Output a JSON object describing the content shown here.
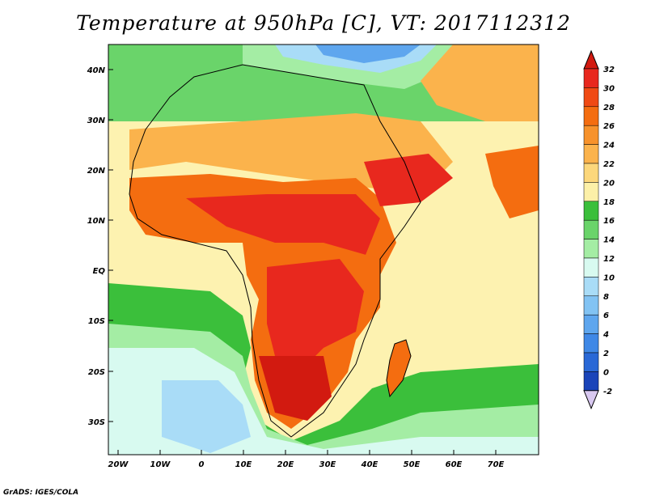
{
  "title": "Temperature at 950hPa [C], VT: 2017112312",
  "footer": "GrADS: IGES/COLA",
  "map": {
    "lat_labels": [
      "40N",
      "30N",
      "20N",
      "10N",
      "EQ",
      "10S",
      "20S",
      "30S"
    ],
    "lon_labels": [
      "20W",
      "10W",
      "0",
      "10E",
      "20E",
      "30E",
      "40E",
      "50E",
      "60E",
      "70E"
    ]
  },
  "colorbar": {
    "levels": [
      "32",
      "30",
      "28",
      "26",
      "24",
      "22",
      "20",
      "18",
      "16",
      "14",
      "12",
      "10",
      "8",
      "6",
      "4",
      "2",
      "0",
      "-2"
    ],
    "colors": [
      "#e8281e",
      "#f04a14",
      "#f46d10",
      "#f7922b",
      "#fbb34c",
      "#fcd77b",
      "#fcf0a8",
      "#3bbf3b",
      "#6ad46a",
      "#a4eda4",
      "#d8faf0",
      "#a9dcf7",
      "#82c3f3",
      "#5ea6ee",
      "#3f88e6",
      "#2968d6",
      "#1a44b9",
      "#0b1c7e"
    ],
    "top_color": "#d21a10",
    "bottom_color": "#d8c8f0"
  }
}
